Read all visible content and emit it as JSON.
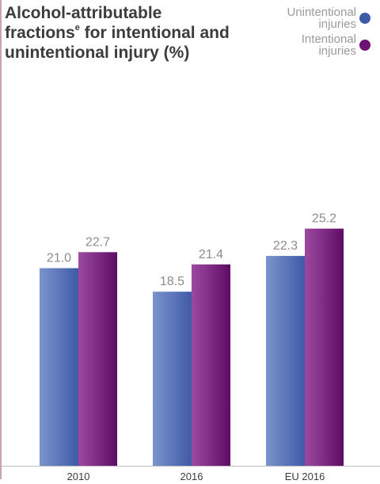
{
  "title": {
    "line1": "Alcohol-attributable",
    "line2_pre": "fractions",
    "line2_sup": "e",
    "line2_post": " for intentional and",
    "line3": "unintentional injury (%)"
  },
  "legend": [
    {
      "line1": "Unintentional",
      "line2": "injuries",
      "color": "#3f5ba8"
    },
    {
      "line1": "Intentional",
      "line2": "injuries",
      "color": "#6e1273"
    }
  ],
  "chart_data": {
    "type": "bar",
    "title": "Alcohol-attributable fractions for intentional and unintentional injury (%)",
    "categories": [
      "2010",
      "2016",
      "EU 2016"
    ],
    "series": [
      {
        "name": "Unintentional injuries",
        "values": [
          21.0,
          18.5,
          22.3
        ],
        "color": "#3f5ba8"
      },
      {
        "name": "Intentional injuries",
        "values": [
          22.7,
          21.4,
          25.2
        ],
        "color": "#6e1273"
      }
    ],
    "value_labels": [
      [
        "21.0",
        "18.5",
        "22.3"
      ],
      [
        "22.7",
        "21.4",
        "25.2"
      ]
    ],
    "ylim": [
      0,
      36
    ],
    "grid": false,
    "legend_position": "top-right",
    "xlabel": "",
    "ylabel": ""
  }
}
